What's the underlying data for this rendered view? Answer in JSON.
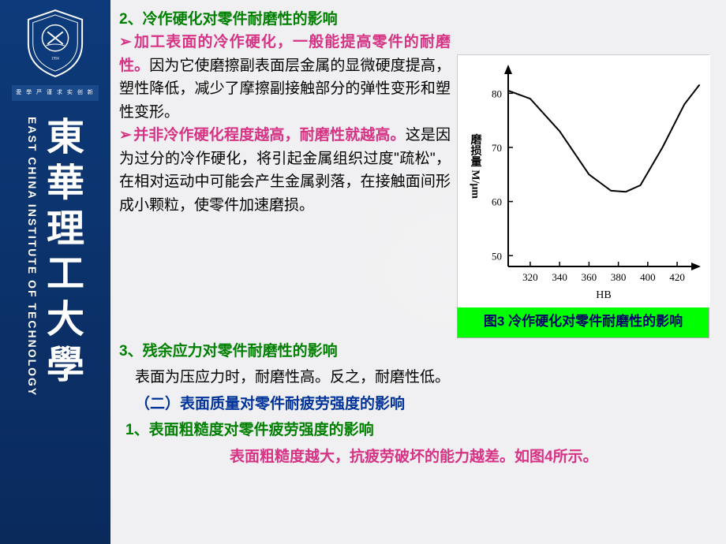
{
  "sidebar": {
    "institute_en": "EAST CHINA INSTITUTE OF TECHNOLOGY",
    "institute_cn_chars": [
      "東",
      "華",
      "理",
      "工",
      "大",
      "學"
    ],
    "banner_text": "愛 學 严 谨  求 实 创 新"
  },
  "section2_title": "2、冷作硬化对零件耐磨性的影响",
  "p1_lead": "加工表面的冷作硬化，一般能提高零件的耐磨性。",
  "p1_rest": "因为它使磨擦副表面层金属的显微硬度提高，塑性降低，减少了摩擦副接触部分的弹性变形和塑性变形。",
  "p2_lead": "并非冷作硬化程度越高，耐磨性就越高。",
  "p2_rest": "这是因为过分的冷作硬化，将引起金属组织过度\"疏松\"，在相对运动中可能会产生金属剥落，在接触面间形成小颗粒，使零件加速磨损。",
  "section3_title": "3、残余应力对零件耐磨性的影响",
  "p3": "表面为压应力时，耐磨性高。反之，耐磨性低。",
  "section_b_title": "（二）表面质量对零件耐疲劳强度的影响",
  "section_b1_title": "1、表面粗糙度对零件疲劳强度的影响",
  "p_b1": "表面粗糙度越大，抗疲劳破坏的能力越差。如图4所示。",
  "chart": {
    "type": "line",
    "caption": "图3   冷作硬化对零件耐磨性的影响",
    "y_label": "磨损量 M/μm",
    "x_label": "HB",
    "x_ticks": [
      320,
      340,
      360,
      380,
      400,
      420
    ],
    "y_ticks": [
      50,
      60,
      70,
      80
    ],
    "xlim": [
      305,
      435
    ],
    "ylim": [
      48,
      85
    ],
    "line_color": "#000000",
    "line_width": 2,
    "background_color": "#ffffff",
    "axis_color": "#000000",
    "tick_fontsize": 13,
    "label_fontsize": 14,
    "points": [
      {
        "x": 305,
        "y": 80.5
      },
      {
        "x": 320,
        "y": 79
      },
      {
        "x": 340,
        "y": 73
      },
      {
        "x": 360,
        "y": 65
      },
      {
        "x": 375,
        "y": 62
      },
      {
        "x": 385,
        "y": 61.8
      },
      {
        "x": 395,
        "y": 63
      },
      {
        "x": 410,
        "y": 70
      },
      {
        "x": 425,
        "y": 78
      },
      {
        "x": 435,
        "y": 81.5
      }
    ]
  }
}
